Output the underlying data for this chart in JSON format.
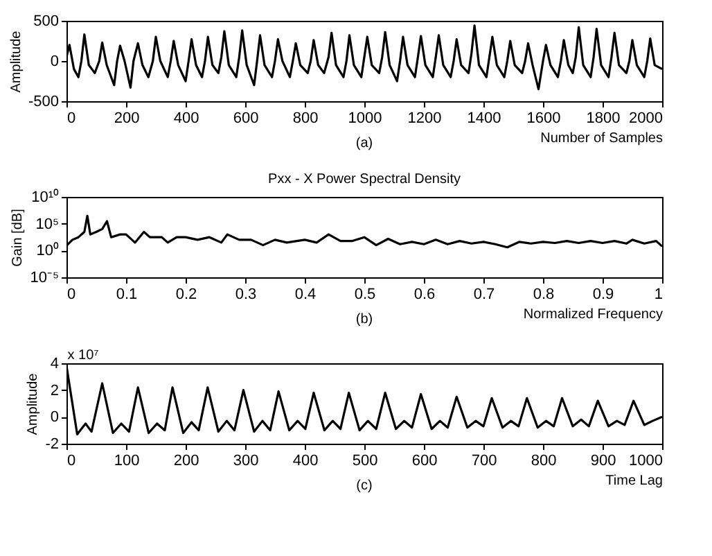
{
  "chart_data": [
    {
      "type": "line",
      "xlabel": "Number of Samples",
      "ylabel": "Amplitude",
      "annotations": [
        "(a)"
      ],
      "xlim": [
        0,
        2000
      ],
      "xticks": [
        0,
        200,
        400,
        600,
        800,
        1000,
        1200,
        1400,
        1600,
        1800,
        2000
      ],
      "ylim": [
        -500,
        500
      ],
      "yticks": [
        -500,
        0,
        500
      ],
      "x": [
        0,
        10,
        25,
        40,
        50,
        60,
        75,
        95,
        110,
        120,
        135,
        160,
        170,
        180,
        195,
        215,
        225,
        240,
        255,
        275,
        290,
        300,
        315,
        340,
        350,
        360,
        375,
        400,
        410,
        420,
        435,
        455,
        465,
        475,
        490,
        510,
        520,
        530,
        545,
        570,
        580,
        590,
        605,
        630,
        640,
        650,
        665,
        690,
        700,
        710,
        725,
        750,
        760,
        770,
        785,
        810,
        820,
        830,
        845,
        865,
        880,
        890,
        905,
        930,
        940,
        950,
        965,
        990,
        1000,
        1010,
        1025,
        1050,
        1060,
        1070,
        1085,
        1110,
        1120,
        1130,
        1145,
        1170,
        1180,
        1190,
        1205,
        1230,
        1240,
        1250,
        1265,
        1290,
        1300,
        1310,
        1325,
        1350,
        1360,
        1370,
        1385,
        1410,
        1420,
        1430,
        1445,
        1470,
        1480,
        1490,
        1505,
        1530,
        1540,
        1550,
        1565,
        1585,
        1600,
        1610,
        1625,
        1650,
        1660,
        1670,
        1685,
        1700,
        1710,
        1720,
        1735,
        1760,
        1770,
        1780,
        1795,
        1820,
        1830,
        1840,
        1855,
        1880,
        1890,
        1900,
        1915,
        1940,
        1950,
        1960,
        1975,
        2000
      ],
      "series": [
        {
          "color": "#000000",
          "values": [
            50,
            200,
            -100,
            -200,
            0,
            330,
            -50,
            -150,
            0,
            230,
            -50,
            -300,
            0,
            190,
            0,
            -330,
            0,
            220,
            -50,
            -200,
            0,
            300,
            0,
            -200,
            0,
            250,
            -50,
            -250,
            0,
            270,
            -50,
            -200,
            0,
            300,
            -50,
            -150,
            50,
            370,
            -50,
            -200,
            50,
            380,
            -50,
            -300,
            0,
            320,
            -50,
            -200,
            0,
            270,
            0,
            -200,
            0,
            220,
            -50,
            -150,
            0,
            260,
            -50,
            -150,
            50,
            350,
            -50,
            -200,
            0,
            320,
            -50,
            -200,
            50,
            300,
            -50,
            -150,
            50,
            360,
            -50,
            -250,
            0,
            300,
            -50,
            -200,
            50,
            310,
            -50,
            -200,
            50,
            320,
            -50,
            -200,
            0,
            270,
            -50,
            -150,
            100,
            440,
            -50,
            -200,
            50,
            300,
            -50,
            -200,
            0,
            250,
            -50,
            -150,
            0,
            220,
            -50,
            -350,
            0,
            200,
            -50,
            -200,
            0,
            260,
            -50,
            -150,
            50,
            420,
            -50,
            -200,
            50,
            400,
            -50,
            -200,
            50,
            350,
            -50,
            -150,
            0,
            260,
            -50,
            -200,
            0,
            280,
            -50,
            -100
          ]
        }
      ]
    },
    {
      "type": "line",
      "title": "Pxx - X Power Spectral Density",
      "xlabel": "Normalized Frequency",
      "ylabel": "Gain [dB]",
      "annotations": [
        "(b)"
      ],
      "log": true,
      "xlim": [
        0,
        1
      ],
      "xticks": [
        0,
        0.1,
        0.2,
        0.3,
        0.4,
        0.5,
        0.6,
        0.7,
        0.8,
        0.9,
        1
      ],
      "ylim": [
        1e-05,
        10000000000
      ],
      "yticks": [
        {
          "value": 1e-05,
          "label": "10⁻⁵"
        },
        {
          "value": 1,
          "label": "10⁰"
        },
        {
          "value": 100000,
          "label": "10⁵"
        },
        {
          "value": 10000000000,
          "label": "10¹⁰"
        }
      ],
      "x": [
        0,
        0.01,
        0.02,
        0.03,
        0.035,
        0.04,
        0.05,
        0.06,
        0.068,
        0.075,
        0.09,
        0.1,
        0.115,
        0.13,
        0.14,
        0.16,
        0.17,
        0.185,
        0.2,
        0.22,
        0.24,
        0.26,
        0.27,
        0.29,
        0.31,
        0.33,
        0.35,
        0.37,
        0.4,
        0.42,
        0.44,
        0.46,
        0.48,
        0.5,
        0.52,
        0.54,
        0.56,
        0.58,
        0.6,
        0.62,
        0.64,
        0.66,
        0.68,
        0.7,
        0.72,
        0.74,
        0.76,
        0.78,
        0.8,
        0.82,
        0.84,
        0.86,
        0.88,
        0.9,
        0.92,
        0.94,
        0.95,
        0.97,
        0.99,
        1
      ],
      "series": [
        {
          "color": "#000000",
          "values": [
            8,
            100,
            300,
            3000,
            3000000,
            1000,
            3000,
            10000,
            300000,
            300,
            1000,
            1000,
            30,
            3000,
            300,
            300,
            30,
            300,
            300,
            100,
            300,
            30,
            1000,
            100,
            100,
            10,
            100,
            30,
            100,
            30,
            1000,
            60,
            60,
            300,
            10,
            150,
            15,
            40,
            15,
            100,
            15,
            60,
            20,
            40,
            15,
            4,
            40,
            20,
            40,
            25,
            60,
            25,
            60,
            25,
            60,
            20,
            100,
            20,
            60,
            6
          ]
        }
      ]
    },
    {
      "type": "line",
      "xlabel": "Time Lag",
      "ylabel": "Amplitude",
      "annotations": [
        "x 10⁷",
        "(c)"
      ],
      "xlim": [
        0,
        1000
      ],
      "xticks": [
        0,
        100,
        200,
        300,
        400,
        500,
        600,
        700,
        800,
        900,
        1000
      ],
      "ylim": [
        -2,
        4
      ],
      "yticks": [
        -2,
        0,
        2,
        4
      ],
      "x": [
        0,
        18,
        32,
        42,
        60,
        78,
        92,
        105,
        120,
        138,
        152,
        165,
        178,
        196,
        210,
        222,
        237,
        255,
        269,
        282,
        297,
        315,
        329,
        342,
        356,
        374,
        388,
        401,
        415,
        433,
        447,
        460,
        474,
        492,
        506,
        520,
        535,
        553,
        567,
        580,
        595,
        613,
        627,
        640,
        655,
        673,
        687,
        700,
        714,
        732,
        746,
        759,
        773,
        791,
        805,
        818,
        832,
        850,
        864,
        877,
        892,
        910,
        924,
        937,
        952,
        970,
        984,
        1000
      ],
      "series": [
        {
          "color": "#000000",
          "values": [
            3.8,
            -1.3,
            -0.5,
            -1.1,
            2.5,
            -1.2,
            -0.5,
            -1.1,
            2.2,
            -1.2,
            -0.5,
            -1.0,
            2.2,
            -1.2,
            -0.4,
            -1.0,
            2.2,
            -1.1,
            -0.3,
            -1.0,
            2.0,
            -1.1,
            -0.3,
            -1.0,
            1.9,
            -1.0,
            -0.3,
            -0.9,
            1.8,
            -1.0,
            -0.3,
            -0.9,
            1.8,
            -1.0,
            -0.3,
            -0.9,
            1.8,
            -0.9,
            -0.3,
            -0.8,
            1.7,
            -0.9,
            -0.3,
            -0.8,
            1.5,
            -0.8,
            -0.3,
            -0.7,
            1.4,
            -0.8,
            -0.3,
            -0.7,
            1.4,
            -0.8,
            -0.3,
            -0.7,
            1.4,
            -0.7,
            -0.2,
            -0.7,
            1.2,
            -0.7,
            -0.3,
            -0.6,
            1.2,
            -0.6,
            -0.3,
            0
          ]
        }
      ]
    }
  ]
}
